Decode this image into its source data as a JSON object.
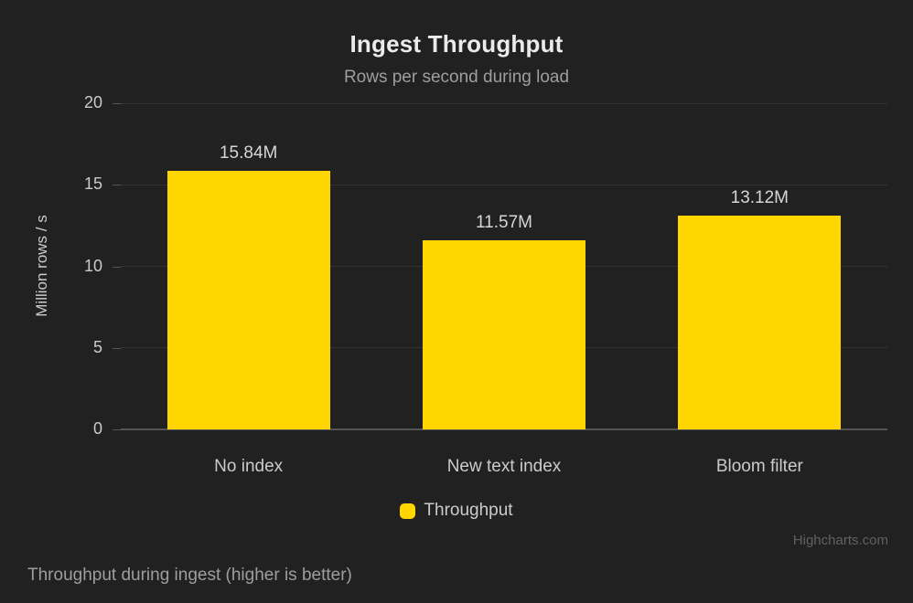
{
  "chart": {
    "title": "Ingest Throughput",
    "subtitle": "Rows per second during load",
    "caption": "Throughput during ingest (higher is better)",
    "credit": "Highcharts.com",
    "legend": {
      "label": "Throughput"
    }
  },
  "chart_data": {
    "type": "bar",
    "title": "Ingest Throughput",
    "subtitle": "Rows per second during load",
    "categories": [
      "No index",
      "New text index",
      "Bloom filter"
    ],
    "series": [
      {
        "name": "Throughput",
        "values": [
          15.84,
          11.57,
          13.12
        ],
        "labels": [
          "15.84M",
          "11.57M",
          "13.12M"
        ],
        "color": "#FFD600"
      }
    ],
    "xlabel": "",
    "ylabel": "Million rows / s",
    "ylim": [
      0,
      20
    ],
    "yticks": [
      0,
      5,
      10,
      15,
      20
    ],
    "grid": true,
    "legend_position": "bottom"
  },
  "colors": {
    "background": "#212121",
    "bar": "#FFD600",
    "grid": "#343434",
    "axis_line": "#555555",
    "tick": "#555555"
  }
}
